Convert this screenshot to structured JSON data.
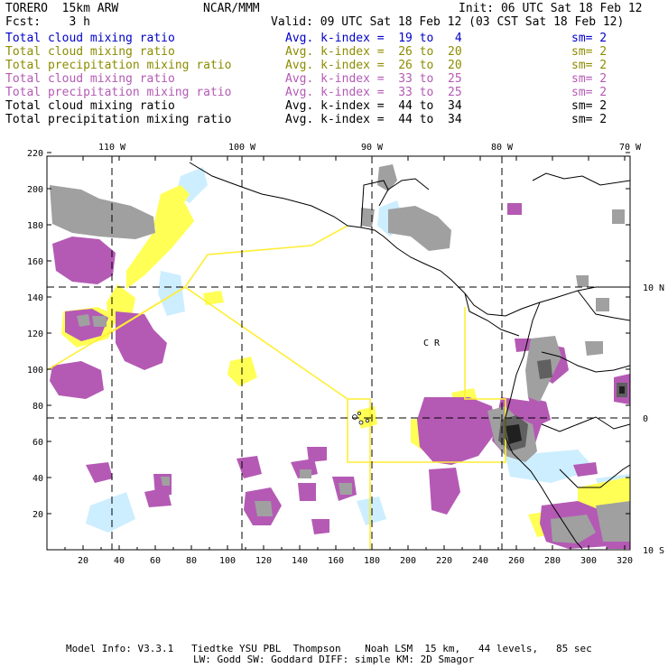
{
  "header": {
    "model": "TORERO  15km ARW",
    "center": "NCAR/MMM",
    "init": "Init: 06 UTC Sat 18 Feb 12",
    "fcst": "Fcst:    3 h",
    "valid": "Valid: 09 UTC Sat 18 Feb 12 (03 CST Sat 18 Feb 12)"
  },
  "legend": [
    {
      "field": "Total cloud mixing ratio",
      "kindex": "Avg. k-index =  19 to   4",
      "sm": "sm= 2",
      "color": "#0000c8"
    },
    {
      "field": "Total cloud mixing ratio",
      "kindex": "Avg. k-index =  26 to  20",
      "sm": "sm= 2",
      "color": "#8c8c00"
    },
    {
      "field": "Total precipitation mixing ratio",
      "kindex": "Avg. k-index =  26 to  20",
      "sm": "sm= 2",
      "color": "#8c8c00"
    },
    {
      "field": "Total cloud mixing ratio",
      "kindex": "Avg. k-index =  33 to  25",
      "sm": "sm= 2",
      "color": "#b45ab4"
    },
    {
      "field": "Total precipitation mixing ratio",
      "kindex": "Avg. k-index =  33 to  25",
      "sm": "sm= 2",
      "color": "#b45ab4"
    },
    {
      "field": "Total cloud mixing ratio",
      "kindex": "Avg. k-index =  44 to  34",
      "sm": "sm= 2",
      "color": "#000000"
    },
    {
      "field": "Total precipitation mixing ratio",
      "kindex": "Avg. k-index =  44 to  34",
      "sm": "sm= 2",
      "color": "#000000"
    }
  ],
  "map": {
    "x_ticks": [
      "20",
      "40",
      "60",
      "80",
      "100",
      "120",
      "140",
      "160",
      "180",
      "200",
      "220",
      "240",
      "260",
      "280",
      "300",
      "320"
    ],
    "y_ticks": [
      "20",
      "40",
      "60",
      "80",
      "100",
      "120",
      "140",
      "160",
      "180",
      "200",
      "220"
    ],
    "lon_labels": [
      "110 W",
      "100 W",
      "90 W",
      "80 W",
      "70 W"
    ],
    "lat_labels": [
      "10 N",
      "0",
      "10 S"
    ],
    "region_label": "C R",
    "colors": {
      "lightblue": "#cdeeff",
      "yellow": "#ffff55",
      "purple": "#b45ab4",
      "gray": "#a0a0a0",
      "darkgray": "#707070",
      "black": "#202020",
      "boundary": "#ffee33"
    }
  },
  "footer": {
    "line1": "Model Info: V3.3.1   Tiedtke YSU PBL  Thompson    Noah LSM  15 km,   44 levels,   85 sec",
    "line2": "LW: Godd SW: Goddard DIFF: simple KM: 2D Smagor"
  }
}
